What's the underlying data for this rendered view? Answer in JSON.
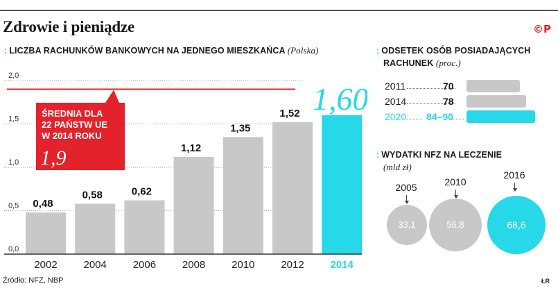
{
  "header": {
    "title": "Zdrowie i pieniądze",
    "logo": "©P"
  },
  "left_section": {
    "mark": ":",
    "title": "Liczba rachunków bankowych na jednego mieszkańca",
    "subtitle": "(Polska)"
  },
  "callout": {
    "lines": [
      "ŚREDNIA DLA",
      "22 PAŃSTW UE",
      "W 2014 ROKU"
    ],
    "value_label": "1,9"
  },
  "colors": {
    "bar": "#c8c8c8",
    "highlight": "#27d9e8",
    "average": "#e3222b",
    "axis": "#333333",
    "grid": "#9a9a9a"
  },
  "chart_data": {
    "type": "bar",
    "title": "Liczba rachunków bankowych na jednego mieszkańca (Polska)",
    "categories": [
      "2002",
      "2004",
      "2006",
      "2008",
      "2010",
      "2012",
      "2014"
    ],
    "values": [
      0.48,
      0.58,
      0.62,
      1.12,
      1.35,
      1.52,
      1.6
    ],
    "value_labels": [
      "0,48",
      "0,58",
      "0,62",
      "1,12",
      "1,35",
      "1,52",
      "1,60"
    ],
    "highlight_index": 6,
    "ylim": [
      0,
      2.0
    ],
    "yticks": [
      0,
      0.5,
      1.0,
      1.5,
      2.0
    ],
    "ytick_labels": [
      "0,0",
      "0,5",
      "1,0",
      "1,5",
      "2,0"
    ],
    "reference_line": {
      "value": 1.9,
      "label": "Średnia dla 22 państw UE w 2014 roku"
    },
    "xlabel": "",
    "ylabel": ""
  },
  "accounts": {
    "mark": ":",
    "title_line1": "Odsetek osób posiadających",
    "title_line2": "rachunek",
    "subtitle": "(proc.)",
    "rows": [
      {
        "year": "2011",
        "value": "70",
        "pct": 70,
        "highlight": false
      },
      {
        "year": "2014",
        "value": "78",
        "pct": 78,
        "highlight": false
      },
      {
        "year": "2020",
        "value": "84–90",
        "pct": 90,
        "highlight": true
      }
    ]
  },
  "nfz": {
    "mark": ":",
    "title": "Wydatki NFZ na leczenie",
    "subtitle": "(mld zł)",
    "items": [
      {
        "year": "2005",
        "value": "33,1",
        "amount": 33.1,
        "highlight": false
      },
      {
        "year": "2010",
        "value": "56,8",
        "amount": 56.8,
        "highlight": false
      },
      {
        "year": "2016",
        "value": "68,6",
        "amount": 68.6,
        "highlight": true
      }
    ]
  },
  "footer": {
    "source": "Źródło:  NFZ, NBP",
    "credit": "ŁR"
  }
}
